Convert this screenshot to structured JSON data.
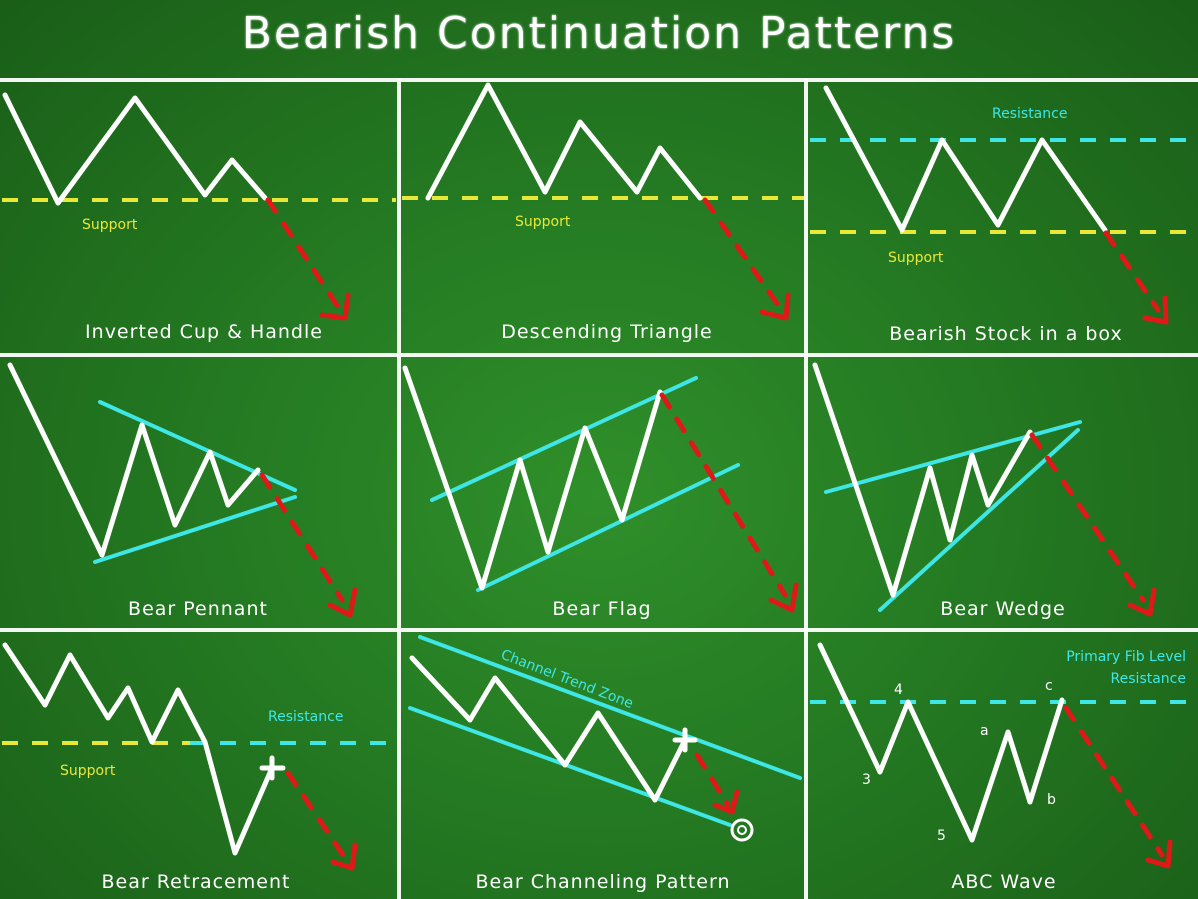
{
  "title": "Bearish Continuation Patterns",
  "colors": {
    "board": "#247a22",
    "support": "#e8e83a",
    "resistance": "#3fe6e6",
    "breakdown": "#e01818",
    "chalk": "#ffffff"
  },
  "panels": [
    {
      "title": "Inverted Cup & Handle",
      "labels": {
        "support": "Support"
      }
    },
    {
      "title": "Descending Triangle",
      "labels": {
        "support": "Support"
      }
    },
    {
      "title": "Bearish Stock in a box",
      "labels": {
        "resistance": "Resistance",
        "support": "Support"
      }
    },
    {
      "title": "Bear Pennant"
    },
    {
      "title": "Bear Flag"
    },
    {
      "title": "Bear Wedge"
    },
    {
      "title": "Bear Retracement",
      "labels": {
        "resistance": "Resistance",
        "support": "Support"
      }
    },
    {
      "title": "Bear Channeling Pattern",
      "labels": {
        "zone": "Channel Trend Zone"
      }
    },
    {
      "title": "ABC Wave",
      "labels": {
        "fib": "Primary Fib Level",
        "resistance": "Resistance",
        "w4": "4",
        "w3": "3",
        "w5": "5",
        "a": "a",
        "b": "b",
        "c": "c"
      }
    }
  ]
}
